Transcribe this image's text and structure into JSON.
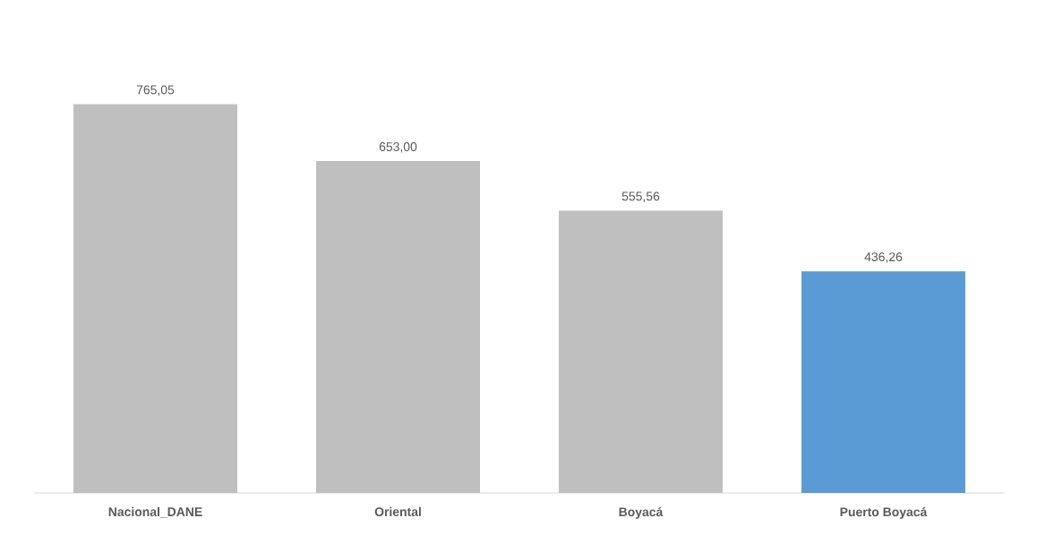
{
  "chart_data": {
    "type": "bar",
    "categories": [
      "Nacional_DANE",
      "Oriental",
      "Boyacá",
      "Puerto Boyacá"
    ],
    "values": [
      765.05,
      653.0,
      555.56,
      436.26
    ],
    "value_labels": [
      "765,05",
      "653,00",
      "555,56",
      "436,26"
    ],
    "colors": [
      "#bfbfbf",
      "#bfbfbf",
      "#bfbfbf",
      "#5b9bd5"
    ]
  }
}
